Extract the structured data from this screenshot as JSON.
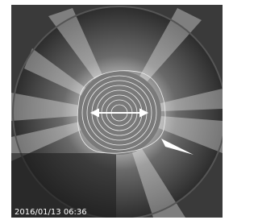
{
  "image": {
    "timestamp": "2016/01/13 06:36"
  }
}
